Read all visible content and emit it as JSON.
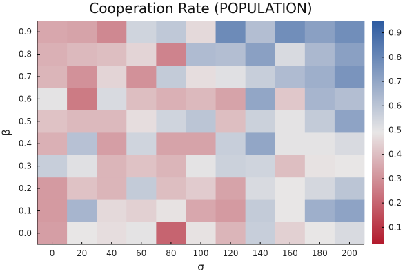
{
  "chart_data": {
    "type": "heatmap",
    "title": "Cooperation Rate (POPULATION)",
    "xlabel": "σ",
    "ylabel": "β",
    "x": [
      "0",
      "20",
      "40",
      "60",
      "80",
      "100",
      "120",
      "140",
      "160",
      "180",
      "200"
    ],
    "y": [
      "0.0",
      "0.1",
      "0.2",
      "0.3",
      "0.4",
      "0.5",
      "0.6",
      "0.7",
      "0.8",
      "0.9"
    ],
    "values": [
      [
        0.33,
        0.49,
        0.47,
        0.5,
        0.2,
        0.48,
        0.38,
        0.57,
        0.44,
        0.49,
        0.53
      ],
      [
        0.32,
        0.65,
        0.46,
        0.44,
        0.48,
        0.35,
        0.32,
        0.58,
        0.49,
        0.67,
        0.71
      ],
      [
        0.32,
        0.41,
        0.38,
        0.58,
        0.4,
        0.43,
        0.34,
        0.53,
        0.49,
        0.54,
        0.6
      ],
      [
        0.57,
        0.51,
        0.38,
        0.41,
        0.38,
        0.5,
        0.56,
        0.55,
        0.4,
        0.48,
        0.49
      ],
      [
        0.37,
        0.61,
        0.33,
        0.55,
        0.34,
        0.34,
        0.57,
        0.7,
        0.5,
        0.5,
        0.53
      ],
      [
        0.41,
        0.39,
        0.39,
        0.47,
        0.55,
        0.6,
        0.4,
        0.56,
        0.5,
        0.58,
        0.71
      ],
      [
        0.5,
        0.25,
        0.53,
        0.4,
        0.37,
        0.39,
        0.34,
        0.7,
        0.42,
        0.65,
        0.62
      ],
      [
        0.38,
        0.3,
        0.45,
        0.3,
        0.58,
        0.47,
        0.51,
        0.57,
        0.63,
        0.67,
        0.76
      ],
      [
        0.37,
        0.39,
        0.4,
        0.45,
        0.27,
        0.63,
        0.62,
        0.72,
        0.53,
        0.64,
        0.72
      ],
      [
        0.35,
        0.34,
        0.28,
        0.55,
        0.59,
        0.46,
        0.79,
        0.62,
        0.78,
        0.72,
        0.78
      ]
    ],
    "zlim": [
      0.03,
      0.95
    ],
    "colorbar_ticks": [
      "0.1",
      "0.2",
      "0.3",
      "0.4",
      "0.5",
      "0.6",
      "0.7",
      "0.8",
      "0.9"
    ],
    "colormap": {
      "low": "#b2182b",
      "mid": "#e8e6e6",
      "high": "#2c5aa0"
    },
    "grid": false,
    "legend": "colorbar-right"
  }
}
